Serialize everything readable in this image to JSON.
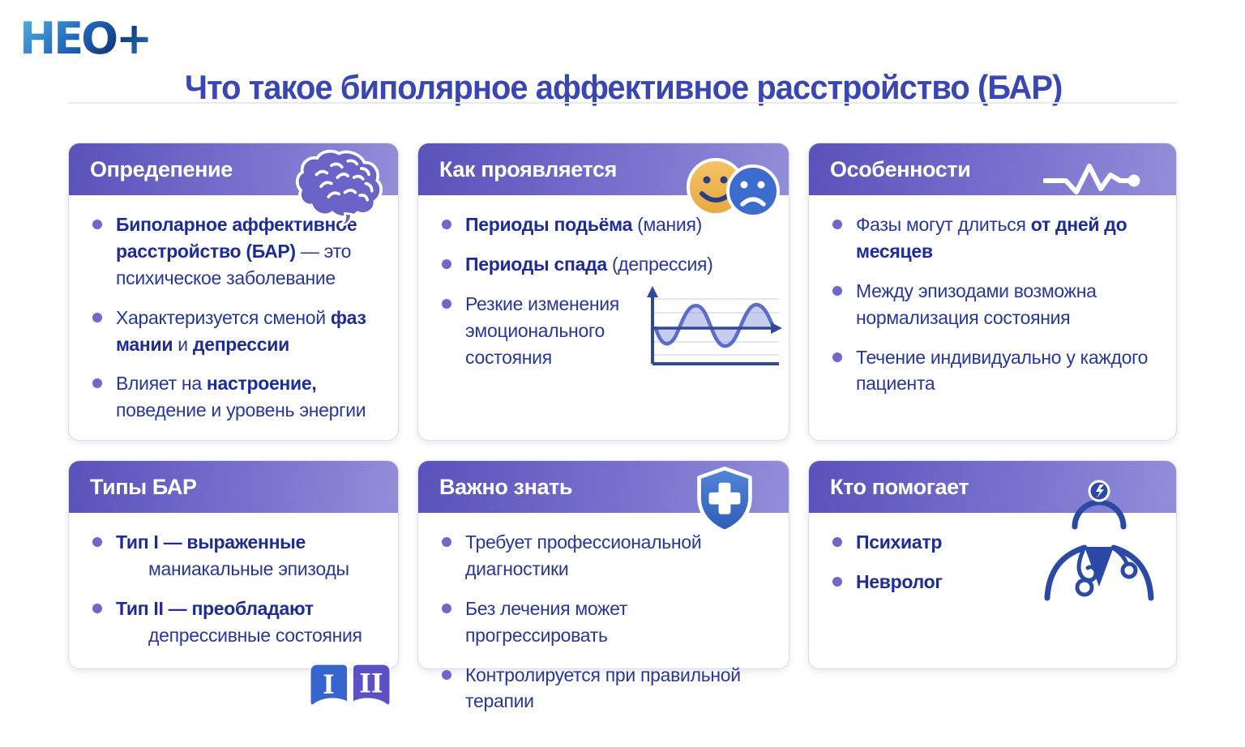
{
  "logo": {
    "text": "НЕО+"
  },
  "header": {
    "title": "Что такое биполярное аффективное расстройство (БАР)"
  },
  "colors": {
    "title_blue": "#3a46b2",
    "header_gradient_left": "#5952ba",
    "header_gradient_right": "#938dd9",
    "body_text_blue": "#27379b",
    "bullet_dot_purple": "#6f68cb",
    "brain_purple": "#6a63c8",
    "smiley_orange": "#edb24d",
    "sad_face_blue": "#3c6ccd",
    "shield_blue": "#2f5cb6",
    "badge_I_blue": "#3565cd",
    "badge_II_purple": "#5b51c4",
    "doctor_navy": "#2b4aa5"
  },
  "cards": [
    {
      "title": "Опредепение",
      "icon": "brain-icon",
      "bullets": [
        {
          "parts": [
            {
              "t": "Биполарное аффективное расстройство (БАР)",
              "b": true
            },
            {
              "t": " — это психическое заболевание",
              "b": false
            }
          ]
        },
        {
          "parts": [
            {
              "t": "Характеризуется сменой ",
              "b": false
            },
            {
              "t": "фаз мании",
              "b": true
            },
            {
              "t": " и ",
              "b": false
            },
            {
              "t": "депрессии",
              "b": true
            }
          ]
        },
        {
          "parts": [
            {
              "t": "Влияет на ",
              "b": false
            },
            {
              "t": "настроение,",
              "b": true
            },
            {
              "t": " поведение и уровень энергии",
              "b": false
            }
          ],
          "maxw": 330
        }
      ]
    },
    {
      "title": "Как проявляется",
      "icon": "mood-faces-icon",
      "bullets": [
        {
          "parts": [
            {
              "t": "Периоды подьёма",
              "b": true
            },
            {
              "t": " (мания)",
              "b": false
            }
          ]
        },
        {
          "parts": [
            {
              "t": "Периоды спада",
              "b": true
            },
            {
              "t": " (депрессия)",
              "b": false
            }
          ]
        },
        {
          "parts": [
            {
              "t": "Резкие изменения эмоционального состояния",
              "b": false
            }
          ],
          "maxw": 235
        }
      ]
    },
    {
      "title": "Особенности",
      "icon": "pulse-icon",
      "bullets": [
        {
          "parts": [
            {
              "t": "Фазы могут длиться ",
              "b": false
            },
            {
              "t": "от дней до месяцев",
              "b": true
            }
          ]
        },
        {
          "parts": [
            {
              "t": "Между эпизодами возможна нормализация состояния",
              "b": false
            }
          ],
          "maxw": 330
        },
        {
          "parts": [
            {
              "t": "Течение индивидуально у каждого пациента",
              "b": false
            }
          ]
        }
      ]
    },
    {
      "title": "Типы БАР",
      "icon": "type-badges-icon",
      "badges": [
        "I",
        "II"
      ],
      "bullets": [
        {
          "parts": [
            {
              "t": "Тип I — выраженные",
              "b": true
            }
          ],
          "parts2": [
            {
              "t": "маниакальные эпизоды",
              "b": false
            }
          ]
        },
        {
          "parts": [
            {
              "t": "Тип II — преобладают",
              "b": true
            }
          ],
          "parts2": [
            {
              "t": "депрессивные состояния",
              "b": false
            }
          ]
        }
      ]
    },
    {
      "title": "Важно знать",
      "icon": "shield-cross-icon",
      "bullets": [
        {
          "parts": [
            {
              "t": "Требует профессиональной диагностики",
              "b": false
            }
          ]
        },
        {
          "parts": [
            {
              "t": "Без лечения может прогрессировать",
              "b": false
            }
          ]
        },
        {
          "parts": [
            {
              "t": "Контролируется при правильной терапии",
              "b": false
            }
          ]
        }
      ]
    },
    {
      "title": "Кто помогает",
      "icon": "doctor-icon",
      "bullets": [
        {
          "parts": [
            {
              "t": "Психиатр",
              "b": true
            }
          ]
        },
        {
          "parts": [
            {
              "t": "Невролог",
              "b": true
            }
          ]
        }
      ]
    }
  ]
}
